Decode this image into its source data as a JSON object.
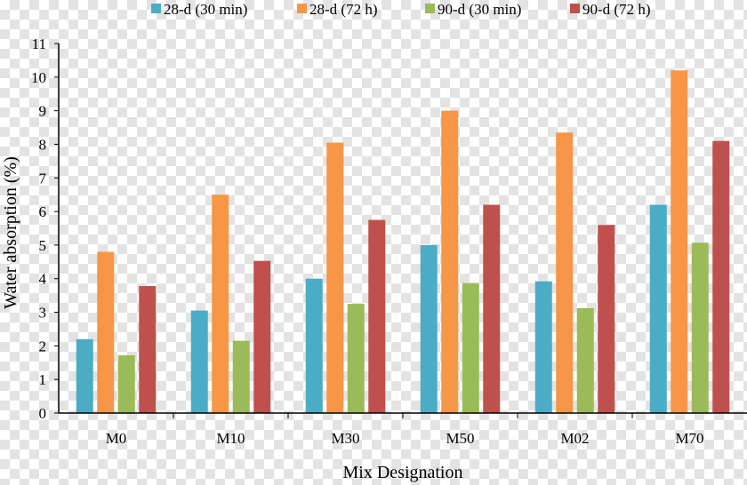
{
  "chart_data": {
    "type": "bar",
    "title": "",
    "xlabel": "Mix Designation",
    "ylabel": "Water absorption (%)",
    "ylim": [
      0,
      11
    ],
    "yticks": [
      "0",
      "1",
      "2",
      "3",
      "4",
      "5",
      "6",
      "7",
      "8",
      "9",
      "10",
      "11"
    ],
    "categories": [
      "M0",
      "M10",
      "M30",
      "M50",
      "M02",
      "M70"
    ],
    "legend_position": "top",
    "grid": false,
    "series": [
      {
        "name": "28-d (30 min)",
        "color": "#4bacc6",
        "values": [
          2.2,
          3.05,
          4.0,
          5.0,
          3.92,
          6.2
        ]
      },
      {
        "name": "28-d (72 h)",
        "color": "#f79646",
        "values": [
          4.8,
          6.5,
          8.05,
          9.0,
          8.35,
          10.2
        ]
      },
      {
        "name": "90-d (30 min)",
        "color": "#9bbb59",
        "values": [
          1.72,
          2.15,
          3.25,
          3.87,
          3.12,
          5.07
        ]
      },
      {
        "name": "90-d (72 h)",
        "color": "#c0504d",
        "values": [
          3.78,
          4.53,
          5.75,
          6.2,
          5.6,
          8.1
        ]
      }
    ]
  }
}
